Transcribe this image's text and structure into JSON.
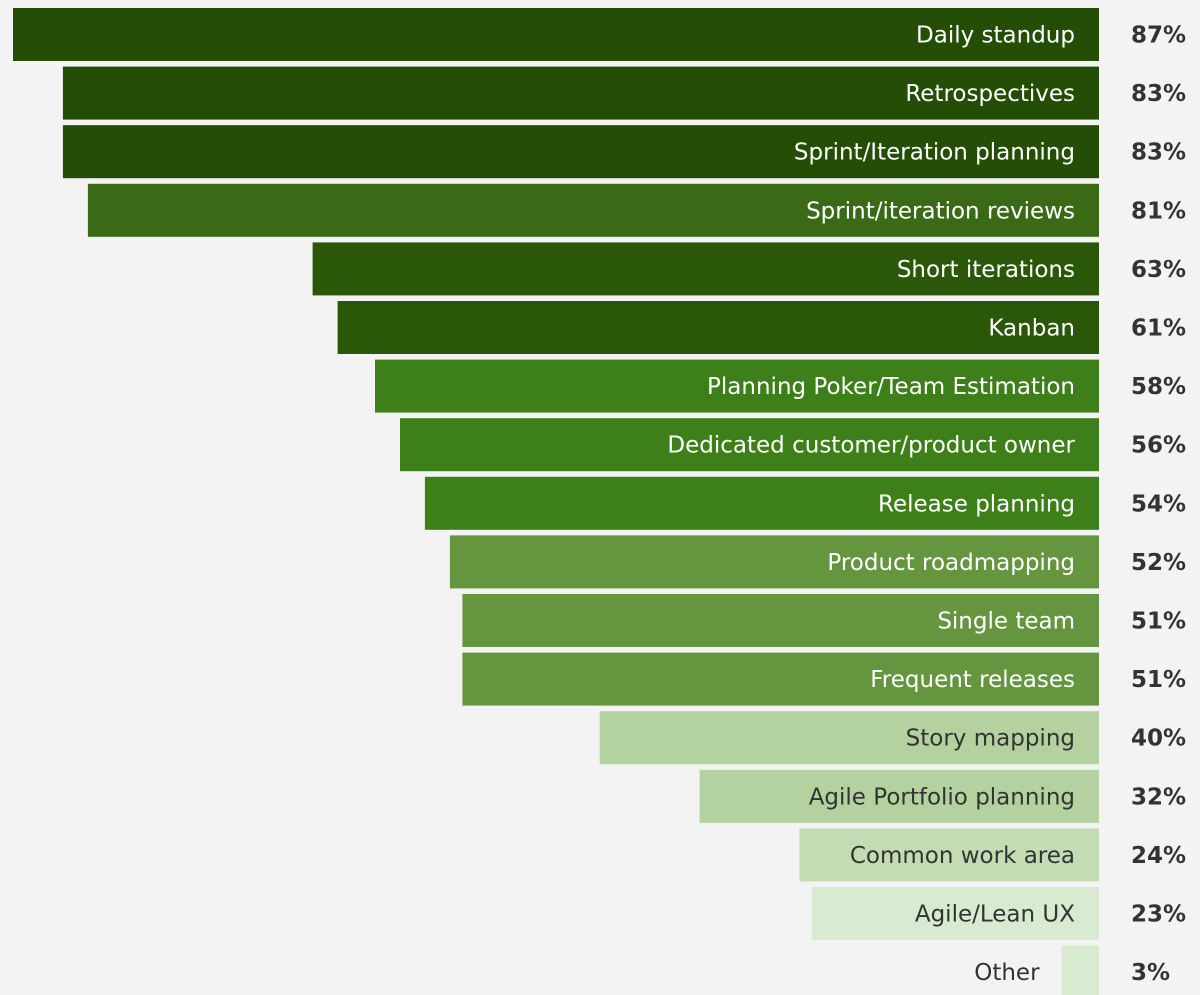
{
  "chart_data": {
    "type": "bar",
    "orientation": "horizontal",
    "value_format": "{v}%",
    "xlim": [
      0,
      87
    ],
    "grid": false,
    "legend": "none",
    "categories": [
      "Daily standup",
      "Retrospectives",
      "Sprint/Iteration planning",
      "Sprint/iteration reviews",
      "Short iterations",
      "Kanban",
      "Planning Poker/Team Estimation",
      "Dedicated customer/product owner",
      "Release planning",
      "Product roadmapping",
      "Single team",
      "Frequent releases",
      "Story mapping",
      "Agile Portfolio planning",
      "Common work area",
      "Agile/Lean UX",
      "Other"
    ],
    "values": [
      87,
      83,
      83,
      81,
      63,
      61,
      58,
      56,
      54,
      52,
      51,
      51,
      40,
      32,
      24,
      23,
      3
    ],
    "value_labels": [
      "87%",
      "83%",
      "83%",
      "81%",
      "63%",
      "61%",
      "58%",
      "56%",
      "54%",
      "52%",
      "51%",
      "51%",
      "40%",
      "32%",
      "24%",
      "23%",
      "3%"
    ],
    "bar_colors": [
      "#244d05",
      "#244d05",
      "#244d05",
      "#3b6a17",
      "#2b5709",
      "#2b5709",
      "#3d7f18",
      "#3d7f18",
      "#3d7f18",
      "#66953f",
      "#66953f",
      "#66953f",
      "#b3d2a0",
      "#b3d2a0",
      "#c3dcb4",
      "#d8eacf",
      "#d8eacf"
    ],
    "label_colors": [
      "#ffffff",
      "#ffffff",
      "#ffffff",
      "#ffffff",
      "#ffffff",
      "#ffffff",
      "#ffffff",
      "#ffffff",
      "#ffffff",
      "#ffffff",
      "#ffffff",
      "#ffffff",
      "#333333",
      "#333333",
      "#333333",
      "#333333",
      "#333333"
    ]
  }
}
